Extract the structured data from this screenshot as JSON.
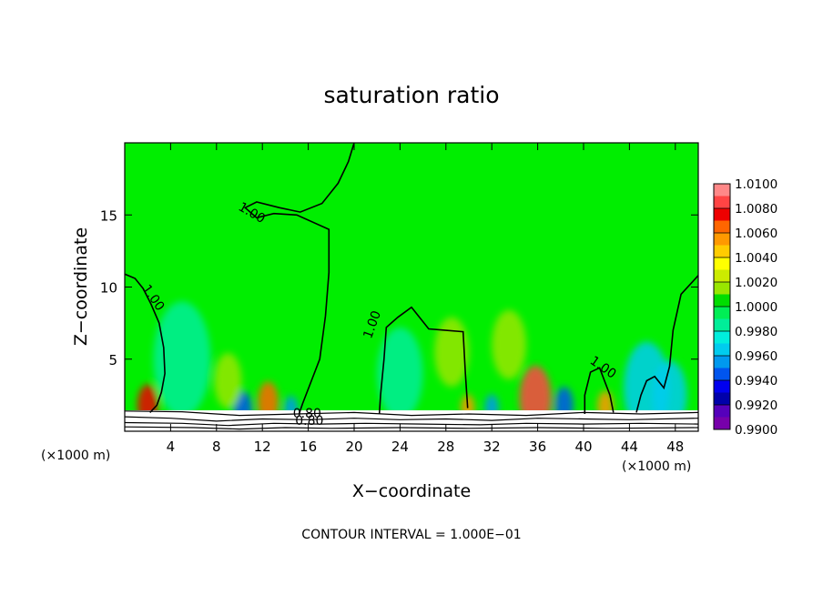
{
  "chart_data": {
    "type": "heatmap",
    "title": "saturation ratio",
    "xlabel": "X−coordinate",
    "ylabel": "Z−coordinate",
    "x_unit_left": "(×1000 m)",
    "x_unit_right": "(×1000 m)",
    "xlim": [
      0,
      50
    ],
    "ylim": [
      0,
      20
    ],
    "x_ticks": [
      "4",
      "8",
      "12",
      "16",
      "20",
      "24",
      "28",
      "32",
      "36",
      "40",
      "44",
      "48"
    ],
    "x_tick_values": [
      4,
      8,
      12,
      16,
      20,
      24,
      28,
      32,
      36,
      40,
      44,
      48
    ],
    "y_ticks": [
      "5",
      "10",
      "15"
    ],
    "y_tick_values": [
      5,
      10,
      15
    ],
    "background_color": "#00ee00",
    "colorbar": {
      "labels": [
        "1.0100",
        "1.0080",
        "1.0060",
        "1.0040",
        "1.0020",
        "1.0000",
        "0.9980",
        "0.9960",
        "0.9940",
        "0.9920",
        "0.9900"
      ],
      "colors": [
        "#ff8888",
        "#ff4444",
        "#ee0000",
        "#ff6600",
        "#ff9900",
        "#ffcc00",
        "#ffff00",
        "#cceb00",
        "#99e600",
        "#00dd00",
        "#00ee55",
        "#00ee99",
        "#00eedd",
        "#00ccee",
        "#0099ee",
        "#0055ee",
        "#0000ee",
        "#0000aa",
        "#5500bb",
        "#7700aa"
      ]
    },
    "contour_labels": [
      {
        "text": "1.00",
        "x": 2.2,
        "y": 9.1
      },
      {
        "text": "1.00",
        "x": 10.9,
        "y": 14.9
      },
      {
        "text": "1.00",
        "x": 21.9,
        "y": 7.3
      },
      {
        "text": "1.00",
        "x": 41.5,
        "y": 4.2
      },
      {
        "text": "0.80",
        "x": 15.9,
        "y": 0.95
      },
      {
        "text": "0.80",
        "x": 16.1,
        "y": 0.45
      }
    ],
    "contours_1_00": [
      [
        [
          0,
          10.9
        ],
        [
          0.9,
          10.6
        ],
        [
          1.6,
          9.9
        ],
        [
          2.3,
          8.8
        ],
        [
          3.0,
          7.5
        ],
        [
          3.4,
          5.8
        ],
        [
          3.5,
          4.0
        ],
        [
          3.2,
          2.7
        ],
        [
          2.8,
          1.8
        ],
        [
          2.2,
          1.3
        ]
      ],
      [
        [
          15.2,
          1.2
        ],
        [
          15.5,
          1.9
        ],
        [
          17.0,
          5.0
        ],
        [
          17.5,
          8.0
        ],
        [
          17.8,
          11.0
        ],
        [
          17.8,
          14.0
        ],
        [
          15.0,
          15.0
        ],
        [
          13.0,
          15.1
        ],
        [
          11.5,
          14.8
        ],
        [
          10.5,
          15.5
        ],
        [
          11.5,
          15.9
        ],
        [
          13.5,
          15.5
        ],
        [
          15.3,
          15.2
        ],
        [
          17.2,
          15.8
        ],
        [
          18.6,
          17.2
        ],
        [
          19.5,
          18.7
        ],
        [
          20.0,
          20.0
        ]
      ],
      [
        [
          22.2,
          1.2
        ],
        [
          22.3,
          2.5
        ],
        [
          22.6,
          5.0
        ],
        [
          22.8,
          7.2
        ],
        [
          23.8,
          7.9
        ],
        [
          25.0,
          8.6
        ],
        [
          26.5,
          7.1
        ],
        [
          28.0,
          7.0
        ],
        [
          29.5,
          6.9
        ],
        [
          29.7,
          4.0
        ],
        [
          29.9,
          1.6
        ]
      ],
      [
        [
          40.1,
          1.2
        ],
        [
          40.1,
          2.5
        ],
        [
          40.6,
          4.1
        ],
        [
          41.4,
          4.4
        ],
        [
          42.3,
          2.5
        ],
        [
          42.6,
          1.3
        ]
      ],
      [
        [
          44.6,
          1.3
        ],
        [
          45.0,
          2.5
        ],
        [
          45.5,
          3.5
        ],
        [
          46.2,
          3.8
        ],
        [
          47.0,
          3.0
        ],
        [
          47.5,
          4.5
        ],
        [
          47.8,
          7.0
        ],
        [
          48.5,
          9.5
        ],
        [
          50.0,
          10.8
        ]
      ]
    ],
    "contours_0_80": [
      [
        [
          0,
          1.4
        ],
        [
          5,
          1.35
        ],
        [
          10,
          1.1
        ],
        [
          15,
          1.2
        ],
        [
          20,
          1.3
        ],
        [
          25,
          1.1
        ],
        [
          30,
          1.2
        ],
        [
          35,
          1.1
        ],
        [
          40,
          1.3
        ],
        [
          45,
          1.2
        ],
        [
          50,
          1.3
        ]
      ],
      [
        [
          0,
          1.0
        ],
        [
          4,
          0.9
        ],
        [
          8,
          0.7
        ],
        [
          12,
          0.85
        ],
        [
          16,
          0.8
        ],
        [
          20,
          0.9
        ],
        [
          24,
          0.8
        ],
        [
          28,
          0.85
        ],
        [
          32,
          0.75
        ],
        [
          36,
          0.9
        ],
        [
          40,
          0.85
        ],
        [
          44,
          0.8
        ],
        [
          50,
          0.9
        ]
      ],
      [
        [
          0,
          0.6
        ],
        [
          5,
          0.55
        ],
        [
          9,
          0.4
        ],
        [
          13,
          0.55
        ],
        [
          17,
          0.5
        ],
        [
          21,
          0.55
        ],
        [
          26,
          0.5
        ],
        [
          31,
          0.45
        ],
        [
          35,
          0.55
        ],
        [
          40,
          0.5
        ],
        [
          45,
          0.55
        ],
        [
          50,
          0.5
        ]
      ],
      [
        [
          0,
          0.3
        ],
        [
          6,
          0.25
        ],
        [
          10,
          0.15
        ],
        [
          14,
          0.25
        ],
        [
          18,
          0.2
        ],
        [
          24,
          0.25
        ],
        [
          30,
          0.2
        ],
        [
          36,
          0.25
        ],
        [
          42,
          0.2
        ],
        [
          50,
          0.25
        ]
      ]
    ],
    "features": [
      {
        "x": 2.0,
        "y": 1.8,
        "r": 0.9,
        "v": 1.0075
      },
      {
        "x": 12.5,
        "y": 2.0,
        "r": 0.9,
        "v": 1.0065
      },
      {
        "x": 29.9,
        "y": 1.6,
        "r": 0.6,
        "v": 1.006
      },
      {
        "x": 35.8,
        "y": 2.3,
        "r": 1.4,
        "v": 1.0085
      },
      {
        "x": 41.9,
        "y": 1.7,
        "r": 0.7,
        "v": 1.006
      },
      {
        "x": 10.3,
        "y": 1.5,
        "r": 0.8,
        "v": 0.995
      },
      {
        "x": 14.5,
        "y": 1.5,
        "r": 0.6,
        "v": 0.996
      },
      {
        "x": 32.0,
        "y": 1.6,
        "r": 0.6,
        "v": 0.9955
      },
      {
        "x": 38.3,
        "y": 1.8,
        "r": 0.8,
        "v": 0.995
      },
      {
        "x": 45.5,
        "y": 3.0,
        "r": 2.0,
        "v": 0.9965
      },
      {
        "x": 47.5,
        "y": 2.5,
        "r": 1.5,
        "v": 0.997
      },
      {
        "x": 24.0,
        "y": 4.0,
        "r": 2.0,
        "v": 0.9982
      },
      {
        "x": 5.0,
        "y": 5.0,
        "r": 2.5,
        "v": 0.9983
      },
      {
        "x": 28.5,
        "y": 5.5,
        "r": 1.5,
        "v": 1.0012
      },
      {
        "x": 33.5,
        "y": 6.0,
        "r": 1.5,
        "v": 1.0014
      },
      {
        "x": 9.0,
        "y": 3.5,
        "r": 1.2,
        "v": 1.0018
      }
    ]
  },
  "footer": {
    "contour_interval": "CONTOUR INTERVAL = 1.000E−01"
  }
}
